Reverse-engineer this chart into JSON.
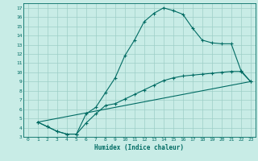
{
  "xlabel": "Humidex (Indice chaleur)",
  "bg_color": "#c8ece6",
  "grid_color": "#9dcfc7",
  "line_color": "#006b63",
  "xlim": [
    -0.5,
    23.5
  ],
  "ylim": [
    3,
    17.5
  ],
  "xticks": [
    0,
    1,
    2,
    3,
    4,
    5,
    6,
    7,
    8,
    9,
    10,
    11,
    12,
    13,
    14,
    15,
    16,
    17,
    18,
    19,
    20,
    21,
    22,
    23
  ],
  "yticks": [
    3,
    4,
    5,
    6,
    7,
    8,
    9,
    10,
    11,
    12,
    13,
    14,
    15,
    16,
    17
  ],
  "line1_x": [
    1,
    2,
    3,
    4,
    5,
    6,
    7,
    8,
    9,
    10,
    11,
    12,
    13,
    14,
    15,
    16,
    17,
    18,
    19,
    20,
    21,
    22,
    23
  ],
  "line1_y": [
    4.6,
    4.1,
    3.6,
    3.3,
    3.3,
    5.5,
    6.2,
    7.8,
    9.4,
    11.8,
    13.5,
    15.5,
    16.4,
    17.0,
    16.7,
    16.3,
    14.8,
    13.5,
    13.2,
    13.1,
    13.1,
    10.2,
    9.0
  ],
  "line2_x": [
    1,
    2,
    3,
    4,
    5,
    6,
    7,
    8,
    9,
    10,
    11,
    12,
    13,
    14,
    15,
    16,
    17,
    18,
    19,
    20,
    21,
    22,
    23
  ],
  "line2_y": [
    4.6,
    4.1,
    3.6,
    3.3,
    3.3,
    4.5,
    5.5,
    6.4,
    6.6,
    7.1,
    7.6,
    8.1,
    8.6,
    9.1,
    9.4,
    9.6,
    9.7,
    9.8,
    9.9,
    10.0,
    10.1,
    10.1,
    9.0
  ],
  "line3_x": [
    1,
    23
  ],
  "line3_y": [
    4.6,
    9.0
  ]
}
